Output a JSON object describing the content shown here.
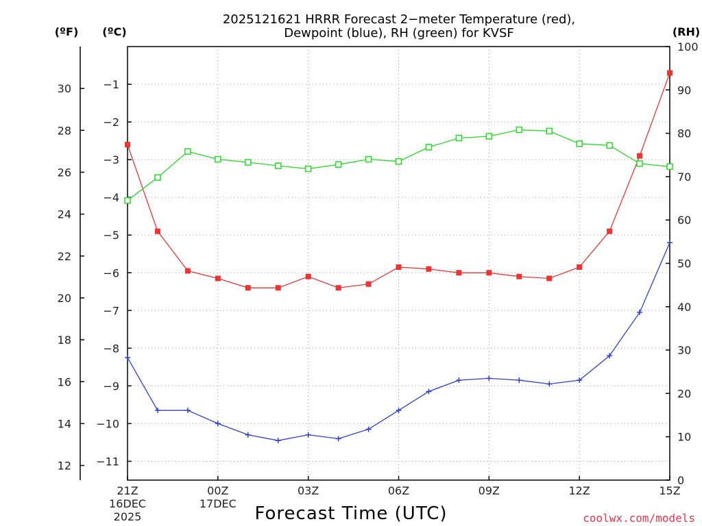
{
  "chart_data": {
    "type": "line",
    "title": "2025121621 HRRR Forecast 2−meter Temperature (red),",
    "title_line2": "Dewpoint (blue), RH (green) for KVSF",
    "xlabel": "Forecast Time (UTC)",
    "credit": "coolwx.com/models",
    "unit_labels": {
      "fahrenheit": "(ºF)",
      "celsius": "(ºC)",
      "rh": "(RH)"
    },
    "x": [
      0,
      1,
      2,
      3,
      4,
      5,
      6,
      7,
      8,
      9,
      10,
      11,
      12,
      13,
      14,
      15,
      16,
      17,
      18
    ],
    "x_ticks": [
      {
        "x": 0,
        "label": "21Z",
        "date1": "16DEC",
        "date2": "2025"
      },
      {
        "x": 3,
        "label": "00Z",
        "date1": "17DEC",
        "date2": ""
      },
      {
        "x": 6,
        "label": "03Z",
        "date1": "",
        "date2": ""
      },
      {
        "x": 9,
        "label": "06Z",
        "date1": "",
        "date2": ""
      },
      {
        "x": 12,
        "label": "09Z",
        "date1": "",
        "date2": ""
      },
      {
        "x": 15,
        "label": "12Z",
        "date1": "",
        "date2": ""
      },
      {
        "x": 18,
        "label": "15Z",
        "date1": "",
        "date2": ""
      }
    ],
    "xlim": [
      0,
      18
    ],
    "celsius_axis": {
      "ylim": [
        -11.5,
        0
      ],
      "ticks": [
        -11,
        -10,
        -9,
        -8,
        -7,
        -6,
        -5,
        -4,
        -3,
        -2,
        -1
      ]
    },
    "fahrenheit_axis": {
      "ticks": [
        12,
        14,
        16,
        18,
        20,
        22,
        24,
        26,
        28,
        30
      ]
    },
    "rh_axis": {
      "ylim": [
        0,
        100
      ],
      "ticks": [
        0,
        10,
        20,
        30,
        40,
        50,
        60,
        70,
        80,
        90,
        100
      ]
    },
    "series": [
      {
        "name": "Temperature",
        "axis": "celsius",
        "color": "#ee3333",
        "marker": "filled-square",
        "values": [
          -2.6,
          -4.9,
          -5.95,
          -6.15,
          -6.4,
          -6.4,
          -6.1,
          -6.4,
          -6.3,
          -5.85,
          -5.9,
          -6.0,
          -6.0,
          -6.1,
          -6.15,
          -5.85,
          -4.9,
          -2.9,
          -0.7
        ]
      },
      {
        "name": "Dewpoint",
        "axis": "celsius",
        "color": "#2a3fd6",
        "marker": "plus",
        "values": [
          -8.25,
          -9.65,
          -9.65,
          -10.0,
          -10.3,
          -10.45,
          -10.3,
          -10.4,
          -10.15,
          -9.65,
          -9.15,
          -8.85,
          -8.8,
          -8.85,
          -8.95,
          -8.85,
          -8.2,
          -7.05,
          -5.2
        ]
      },
      {
        "name": "RH",
        "axis": "rh",
        "color": "#22dd22",
        "marker": "open-square",
        "values": [
          64.5,
          69.8,
          75.8,
          74.0,
          73.3,
          72.5,
          71.8,
          72.8,
          74.0,
          73.5,
          76.8,
          78.9,
          79.3,
          80.8,
          80.5,
          77.6,
          77.2,
          73.0,
          72.3
        ]
      }
    ]
  }
}
